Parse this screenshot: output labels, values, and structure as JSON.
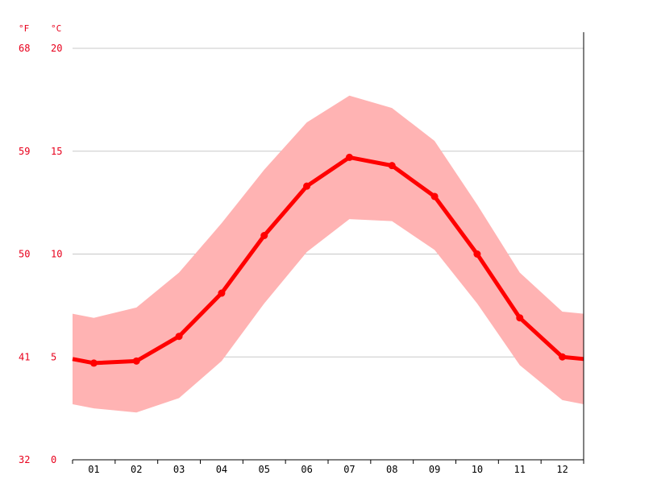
{
  "chart_data": {
    "type": "line",
    "categories": [
      "01",
      "02",
      "03",
      "04",
      "05",
      "06",
      "07",
      "08",
      "09",
      "10",
      "11",
      "12"
    ],
    "series": [
      {
        "values": [
          4.7,
          4.8,
          6.0,
          8.1,
          10.9,
          13.3,
          14.7,
          14.3,
          12.8,
          10.0,
          6.9,
          5.0
        ]
      }
    ],
    "band": {
      "upper": [
        6.9,
        7.4,
        9.1,
        11.5,
        14.1,
        16.4,
        17.7,
        17.1,
        15.5,
        12.4,
        9.1,
        7.2
      ],
      "lower": [
        2.5,
        2.3,
        3.0,
        4.8,
        7.6,
        10.1,
        11.7,
        11.6,
        10.2,
        7.6,
        4.6,
        2.9
      ]
    },
    "edge_values": {
      "left": 4.9,
      "right": 4.9,
      "band_upper_left": 7.1,
      "band_upper_right": 7.1,
      "band_lower_left": 2.7,
      "band_lower_right": 2.7
    },
    "y_unit_celsius": "°C",
    "y_unit_fahrenheit": "°F",
    "y_ticks_celsius": [
      "0",
      "5",
      "10",
      "15",
      "20"
    ],
    "y_ticks_fahrenheit": [
      "32",
      "41",
      "50",
      "59",
      "68"
    ],
    "ylim": [
      0,
      20
    ],
    "grid": true,
    "colors": {
      "line": "#ff0000",
      "band": "#ffb3b3",
      "tick_text": "#e8001c",
      "grid": "#c8c8c8"
    }
  }
}
